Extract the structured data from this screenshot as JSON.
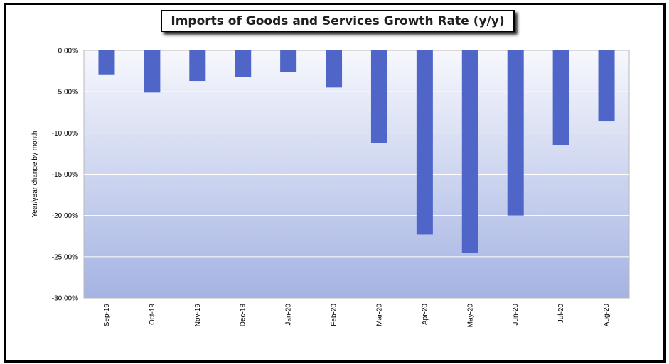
{
  "chart_data": {
    "type": "bar",
    "title": "Imports of Goods and Services Growth Rate (y/y)",
    "ylabel": "Year/year change by month",
    "xlabel": "",
    "categories": [
      "Sep-19",
      "Oct-19",
      "Nov-19",
      "Dec-19",
      "Jan-20",
      "Feb-20",
      "Mar-20",
      "Apr-20",
      "May-20",
      "Jun-20",
      "Jul-20",
      "Aug-20"
    ],
    "values": [
      -2.9,
      -5.1,
      -3.7,
      -3.2,
      -2.6,
      -4.5,
      -11.2,
      -22.3,
      -24.5,
      -20.0,
      -11.5,
      -8.6
    ],
    "ylim": [
      -30,
      0
    ],
    "yticks": [
      "0.00%",
      "-5.00%",
      "-10.00%",
      "-15.00%",
      "-20.00%",
      "-25.00%",
      "-30.00%"
    ],
    "grid": true,
    "legend": "none",
    "colors": {
      "bar": "#4f66c8",
      "bg_top": "#f7f8fd",
      "bg_bottom": "#a4b3e2"
    }
  }
}
